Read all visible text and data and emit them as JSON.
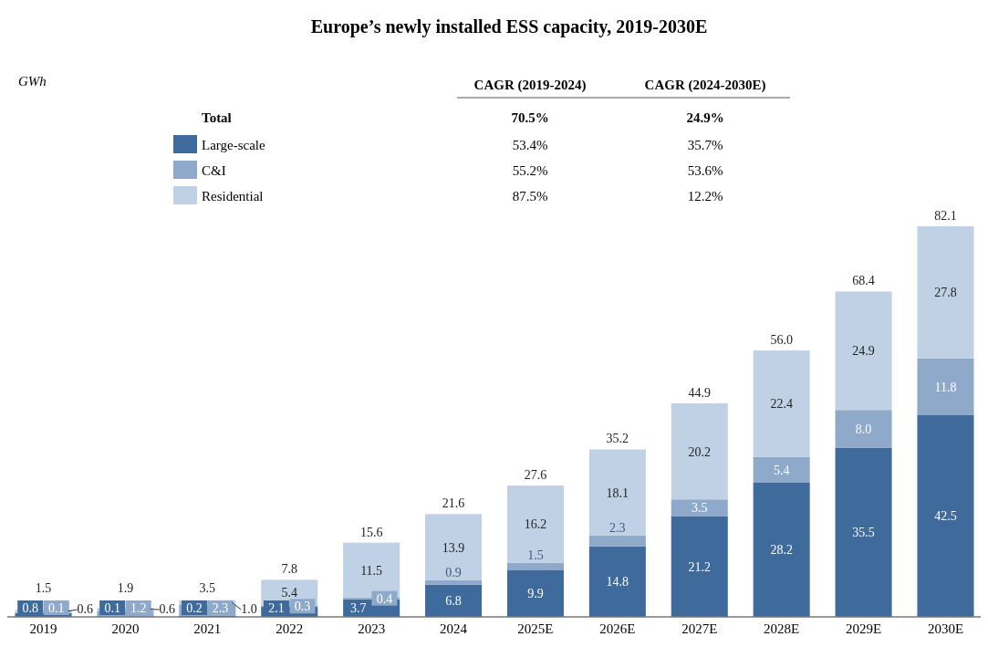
{
  "chart_data": {
    "type": "bar",
    "stacked": true,
    "title": "Europe’s newly installed ESS capacity, 2019-2030E",
    "categories": [
      "2019",
      "2020",
      "2021",
      "2022",
      "2023",
      "2024",
      "2025E",
      "2026E",
      "2027E",
      "2028E",
      "2029E",
      "2030E"
    ],
    "series": [
      {
        "name": "Large-scale",
        "color": "#3e6a9c",
        "values": [
          0.8,
          0.1,
          0.2,
          2.1,
          3.7,
          6.8,
          9.9,
          14.8,
          21.2,
          28.2,
          35.5,
          42.5
        ],
        "value_labels": [
          "0.8",
          "0.1",
          "0.2",
          "2.1",
          "3.7",
          "6.8",
          "9.9",
          "14.8",
          "21.2",
          "28.2",
          "35.5",
          "42.5"
        ]
      },
      {
        "name": "C&I",
        "color": "#8fa9cb",
        "values": [
          0.1,
          1.2,
          2.3,
          0.3,
          0.4,
          0.9,
          1.5,
          2.3,
          3.5,
          5.4,
          8.0,
          11.8
        ],
        "value_labels": [
          "0.1",
          "1.2",
          "2.3",
          "0.3",
          "0.4",
          "0.9",
          "1.5",
          "2.3",
          "3.5",
          "5.4",
          "8.0",
          "11.8"
        ]
      },
      {
        "name": "Residential",
        "color": "#c1d1e5",
        "values": [
          0.6,
          0.6,
          1.0,
          5.4,
          11.5,
          13.9,
          16.2,
          18.1,
          20.2,
          22.4,
          24.9,
          27.8
        ],
        "value_labels": [
          "0.6",
          "0.6",
          "1.0",
          "5.4",
          "11.5",
          "13.9",
          "16.2",
          "18.1",
          "20.2",
          "22.4",
          "24.9",
          "27.8"
        ]
      }
    ],
    "totals": [
      "1.5",
      "1.9",
      "3.5",
      "7.8",
      "15.6",
      "21.6",
      "27.6",
      "35.2",
      "44.9",
      "56.0",
      "68.4",
      "82.1"
    ],
    "legend": "top left",
    "annotations": [
      "GWh",
      "CAGR (2019-2024)",
      "CAGR (2024-2030E)",
      "Total",
      "70.5%",
      "24.9%",
      "53.4%",
      "35.7%",
      "55.2%",
      "53.6%",
      "87.5%",
      "12.2%"
    ]
  }
}
